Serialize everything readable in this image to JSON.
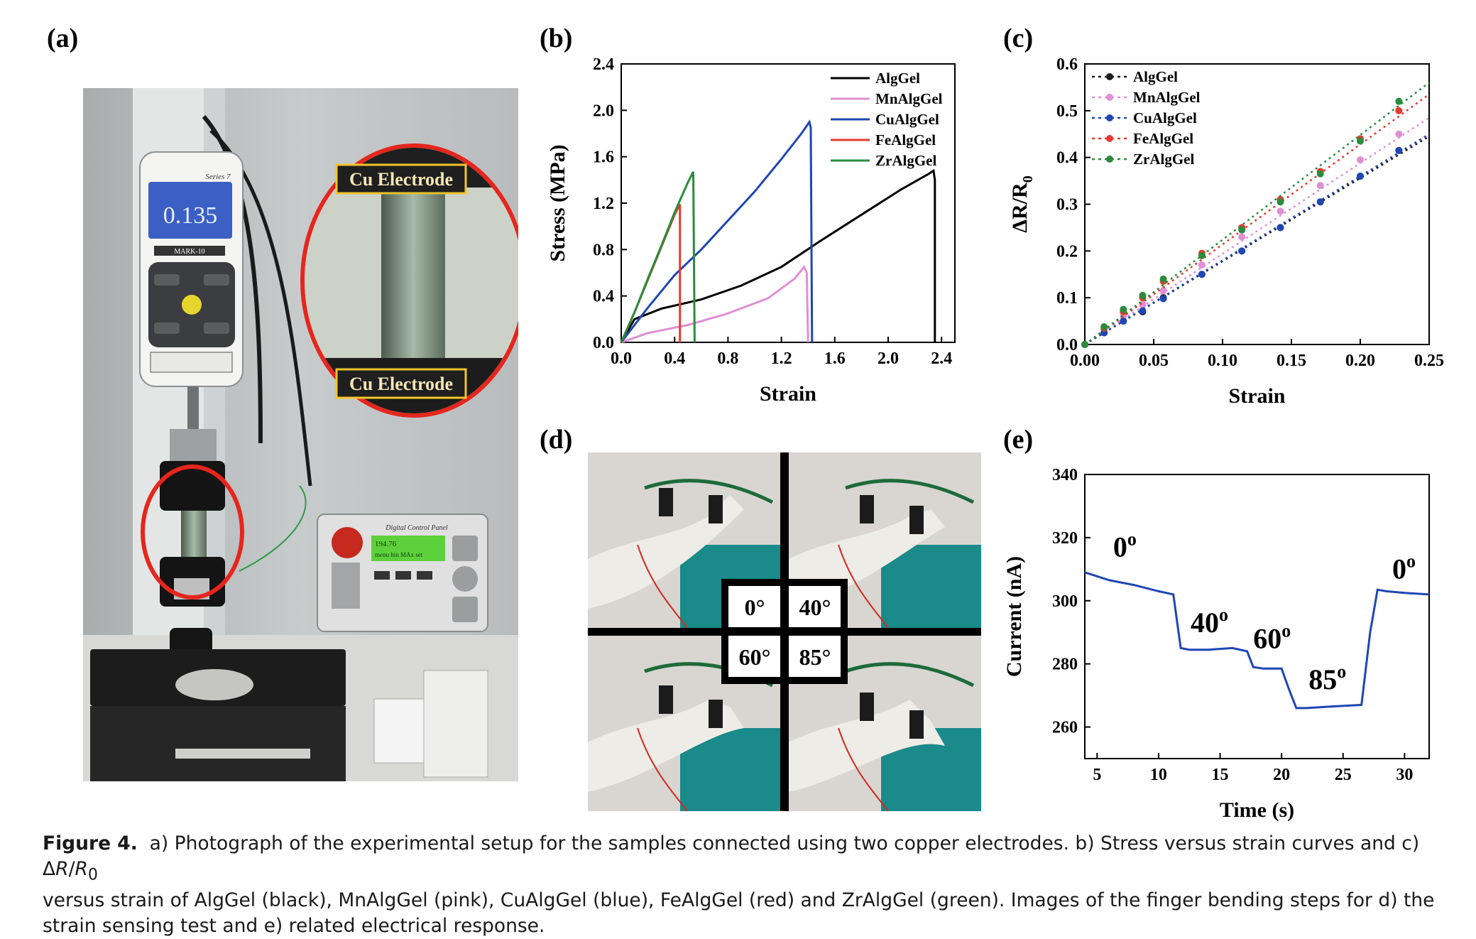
{
  "panels": {
    "a": "(a)",
    "b": "(b)",
    "c": "(c)",
    "d": "(d)",
    "e": "(e)"
  },
  "photo_a": {
    "callout_top": "Cu Electrode",
    "callout_bottom": "Cu Electrode",
    "gauge_reading": "0.135",
    "gauge_series": "Series 7",
    "gauge_brand": "MARK-10",
    "panel_title": "Digital Control Panel",
    "panel_display_line1": "194.76",
    "panel_display_line2": "menu hin MAx set"
  },
  "photo_d": {
    "angles": [
      "0°",
      "40°",
      "60°",
      "85°"
    ]
  },
  "chart_data": [
    {
      "panel": "b",
      "type": "line",
      "xlabel": "Strain",
      "ylabel": "Stress (MPa)",
      "xlim": [
        0,
        2.5
      ],
      "ylim": [
        0,
        2.4
      ],
      "xticks": [
        "0.0",
        "0.4",
        "0.8",
        "1.2",
        "1.6",
        "2.0",
        "2.4"
      ],
      "yticks": [
        "0.0",
        "0.4",
        "0.8",
        "1.2",
        "1.6",
        "2.0",
        "2.4"
      ],
      "legend": "top-right",
      "series": [
        {
          "name": "AlgGel",
          "color": "#000000",
          "x": [
            0,
            0.1,
            0.3,
            0.6,
            0.9,
            1.2,
            1.5,
            1.8,
            2.1,
            2.3,
            2.34,
            2.35,
            2.35
          ],
          "y": [
            0,
            0.2,
            0.29,
            0.37,
            0.49,
            0.65,
            0.88,
            1.1,
            1.32,
            1.45,
            1.48,
            1.4,
            0
          ]
        },
        {
          "name": "MnAlgGel",
          "color": "#e08fd6",
          "x": [
            0,
            0.2,
            0.5,
            0.8,
            1.1,
            1.3,
            1.37,
            1.39,
            1.4
          ],
          "y": [
            0,
            0.08,
            0.15,
            0.25,
            0.38,
            0.55,
            0.65,
            0.6,
            0
          ]
        },
        {
          "name": "CuAlgGel",
          "color": "#1f46b4",
          "x": [
            0,
            0.2,
            0.4,
            0.6,
            0.8,
            1.0,
            1.2,
            1.35,
            1.41,
            1.42,
            1.43
          ],
          "y": [
            0,
            0.3,
            0.58,
            0.8,
            1.05,
            1.3,
            1.58,
            1.8,
            1.9,
            1.85,
            0
          ]
        },
        {
          "name": "FeAlgGel",
          "color": "#e83a2e",
          "x": [
            0,
            0.1,
            0.2,
            0.3,
            0.4,
            0.44,
            0.44
          ],
          "y": [
            0,
            0.26,
            0.54,
            0.82,
            1.1,
            1.19,
            0
          ]
        },
        {
          "name": "ZrAlgGel",
          "color": "#2a8c3c",
          "x": [
            0,
            0.1,
            0.2,
            0.3,
            0.4,
            0.5,
            0.54,
            0.55
          ],
          "y": [
            0,
            0.26,
            0.55,
            0.83,
            1.12,
            1.38,
            1.47,
            0
          ]
        }
      ]
    },
    {
      "panel": "c",
      "type": "scatter",
      "xlabel": "Strain",
      "ylabel": "ΔR/R",
      "ylabel_sub": "0",
      "xlim": [
        0,
        0.25
      ],
      "ylim": [
        0,
        0.6
      ],
      "xticks": [
        "0.00",
        "0.05",
        "0.10",
        "0.15",
        "0.20",
        "0.25"
      ],
      "yticks": [
        "0.0",
        "0.1",
        "0.2",
        "0.3",
        "0.4",
        "0.5",
        "0.6"
      ],
      "legend": "top-left",
      "x": [
        0.0,
        0.014,
        0.028,
        0.042,
        0.057,
        0.085,
        0.114,
        0.142,
        0.171,
        0.2,
        0.228
      ],
      "series": [
        {
          "name": "AlgGel",
          "color": "#1a1a1a",
          "y": [
            0.0,
            0.025,
            0.05,
            0.07,
            0.1,
            0.15,
            0.2,
            0.25,
            0.305,
            0.36,
            0.415
          ],
          "fit_end": 0.445
        },
        {
          "name": "MnAlgGel",
          "color": "#e08fd6",
          "y": [
            0.0,
            0.03,
            0.06,
            0.085,
            0.115,
            0.17,
            0.23,
            0.285,
            0.34,
            0.395,
            0.45
          ],
          "fit_end": 0.485
        },
        {
          "name": "CuAlgGel",
          "color": "#1f46b4",
          "y": [
            0.0,
            0.025,
            0.05,
            0.072,
            0.098,
            0.15,
            0.2,
            0.25,
            0.305,
            0.36,
            0.415
          ],
          "fit_end": 0.45
        },
        {
          "name": "FeAlgGel",
          "color": "#e83a2e",
          "y": [
            0.0,
            0.035,
            0.07,
            0.1,
            0.135,
            0.195,
            0.25,
            0.31,
            0.37,
            0.44,
            0.5
          ],
          "fit_end": 0.535
        },
        {
          "name": "ZrAlgGel",
          "color": "#2a8c3c",
          "y": [
            0.0,
            0.038,
            0.075,
            0.105,
            0.14,
            0.19,
            0.245,
            0.305,
            0.365,
            0.435,
            0.52
          ],
          "fit_end": 0.56
        }
      ]
    },
    {
      "panel": "e",
      "type": "line",
      "xlabel": "Time (s)",
      "ylabel": "Current (nA)",
      "xlim": [
        4,
        32
      ],
      "ylim": [
        250,
        340
      ],
      "xticks": [
        "5",
        "10",
        "15",
        "20",
        "25",
        "30"
      ],
      "yticks": [
        "260",
        "280",
        "300",
        "320",
        "340"
      ],
      "color": "#1f46b4",
      "x": [
        4,
        6,
        8,
        10,
        11.2,
        11.8,
        12.5,
        14,
        16,
        17.2,
        17.7,
        18.5,
        20,
        20.6,
        21.2,
        22,
        24,
        26.5,
        27.2,
        27.8,
        28.5,
        30,
        32
      ],
      "y": [
        309,
        306.5,
        305,
        303,
        302,
        285,
        284.5,
        284.5,
        285,
        284,
        279,
        278.5,
        278.5,
        272,
        266,
        266,
        266.5,
        267,
        290,
        303.5,
        303,
        302.5,
        302
      ],
      "annotations": [
        {
          "text": "0",
          "x": 6.3,
          "y": 314
        },
        {
          "text": "40",
          "x": 12.6,
          "y": 290
        },
        {
          "text": "60",
          "x": 17.7,
          "y": 285
        },
        {
          "text": "85",
          "x": 22.2,
          "y": 272
        },
        {
          "text": "0",
          "x": 29,
          "y": 307
        }
      ],
      "degree_mark": "o"
    }
  ],
  "caption": {
    "figure_label": "Figure 4.",
    "line1_a": "a) Photograph of the experimental setup for the samples connected using two copper electrodes. b) Stress versus strain curves and c) Δ",
    "line1_R": "R",
    "line1_slash": "/",
    "line1_R0": "R",
    "line1_R0_sub": "0",
    "line2": "versus strain of AlgGel (black), MnAlgGel (pink), CuAlgGel (blue), FeAlgGel (red) and ZrAlgGel (green). Images of the finger bending steps for d) the",
    "line3": "strain sensing test and e) related electrical response."
  }
}
